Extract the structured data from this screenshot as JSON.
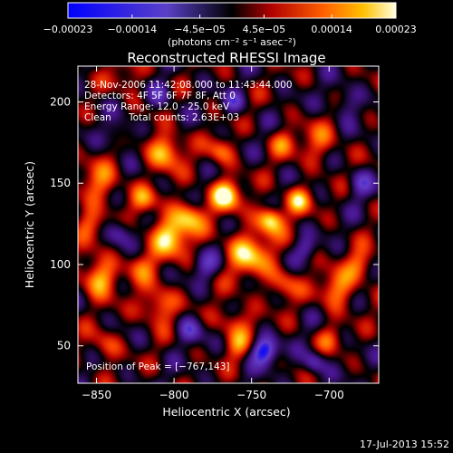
{
  "chart_data": {
    "type": "heatmap",
    "title": "Reconstructed RHESSI Image",
    "xlabel": "Heliocentric X (arcsec)",
    "ylabel": "Heliocentric Y (arcsec)",
    "xlim": [
      -862,
      -668
    ],
    "ylim": [
      27,
      222
    ],
    "x_ticks": [
      -850,
      -800,
      -750,
      -700
    ],
    "x_tick_labels": [
      "−850",
      "−800",
      "−750",
      "−700"
    ],
    "y_ticks": [
      50,
      100,
      150,
      200
    ],
    "y_tick_labels": [
      "50",
      "100",
      "150",
      "200"
    ],
    "colorbar": {
      "range": [
        -0.00023,
        0.00023
      ],
      "ticks": [
        -0.00023,
        -0.00014,
        -4.5e-05,
        4.5e-05,
        0.00014,
        0.00023
      ],
      "tick_labels": [
        "−0.00023",
        "−0.00014",
        "−4.5e−05",
        "4.5e−05",
        "0.00014",
        "0.00023"
      ],
      "unit_label": "(photons cm⁻² s⁻¹ asec⁻²)"
    },
    "annotations": [
      "28-Nov-2006 11:42:08.000 to 11:43:44.000",
      "Detectors: 4F 5F 6F 7F 8F, Att 0",
      "Energy Range: 12.0 - 25.0 keV",
      "Clean",
      "Total counts: 2.63E+03"
    ],
    "peak_label": "Position of Peak = [−767,143]",
    "peak": [
      -767,
      143
    ],
    "blobs": [
      {
        "x": -767,
        "y": 143,
        "s": 7,
        "a": 1.0
      },
      {
        "x": -770,
        "y": 170,
        "s": 6,
        "a": 0.55
      },
      {
        "x": -806,
        "y": 170,
        "s": 8,
        "a": 0.85
      },
      {
        "x": -803,
        "y": 118,
        "s": 9,
        "a": 0.95
      },
      {
        "x": -790,
        "y": 130,
        "s": 7,
        "a": 0.7
      },
      {
        "x": -752,
        "y": 107,
        "s": 10,
        "a": 0.85
      },
      {
        "x": -738,
        "y": 128,
        "s": 6,
        "a": 1.0
      },
      {
        "x": -720,
        "y": 140,
        "s": 6,
        "a": 0.75
      },
      {
        "x": -707,
        "y": 175,
        "s": 9,
        "a": 0.45
      },
      {
        "x": -730,
        "y": 88,
        "s": 7,
        "a": 0.55
      },
      {
        "x": -760,
        "y": 65,
        "s": 8,
        "a": 0.5
      },
      {
        "x": -760,
        "y": 50,
        "s": 6,
        "a": 0.45
      },
      {
        "x": -810,
        "y": 75,
        "s": 8,
        "a": 0.7
      },
      {
        "x": -822,
        "y": 100,
        "s": 7,
        "a": 0.5
      },
      {
        "x": -848,
        "y": 92,
        "s": 8,
        "a": 0.85
      },
      {
        "x": -855,
        "y": 125,
        "s": 7,
        "a": 0.55
      },
      {
        "x": -848,
        "y": 150,
        "s": 9,
        "a": 0.6
      },
      {
        "x": -820,
        "y": 140,
        "s": 6,
        "a": 0.55
      },
      {
        "x": -730,
        "y": 175,
        "s": 6,
        "a": 0.45
      },
      {
        "x": -695,
        "y": 85,
        "s": 8,
        "a": 0.7
      },
      {
        "x": -680,
        "y": 100,
        "s": 7,
        "a": 0.55
      },
      {
        "x": -700,
        "y": 55,
        "s": 6,
        "a": 0.4
      },
      {
        "x": -845,
        "y": 50,
        "s": 7,
        "a": 0.45
      },
      {
        "x": -830,
        "y": 215,
        "s": 8,
        "a": 0.35
      },
      {
        "x": -790,
        "y": 60,
        "s": 6,
        "a": -0.55
      },
      {
        "x": -742,
        "y": 47,
        "s": 6,
        "a": -1.0
      },
      {
        "x": -710,
        "y": 40,
        "s": 5,
        "a": -0.6
      },
      {
        "x": -835,
        "y": 120,
        "s": 6,
        "a": -0.55
      },
      {
        "x": -780,
        "y": 100,
        "s": 6,
        "a": -0.45
      },
      {
        "x": -762,
        "y": 200,
        "s": 5,
        "a": -0.5
      },
      {
        "x": -810,
        "y": 205,
        "s": 6,
        "a": -0.45
      },
      {
        "x": -680,
        "y": 150,
        "s": 6,
        "a": -0.5
      },
      {
        "x": -835,
        "y": 180,
        "s": 6,
        "a": -0.4
      },
      {
        "x": -715,
        "y": 110,
        "s": 5,
        "a": -0.4
      },
      {
        "x": -690,
        "y": 200,
        "s": 7,
        "a": -0.4
      }
    ]
  },
  "footer": {
    "timestamp": "17-Jul-2013 15:52"
  },
  "colors": {
    "background": "#000000",
    "text": "#ffffff"
  }
}
